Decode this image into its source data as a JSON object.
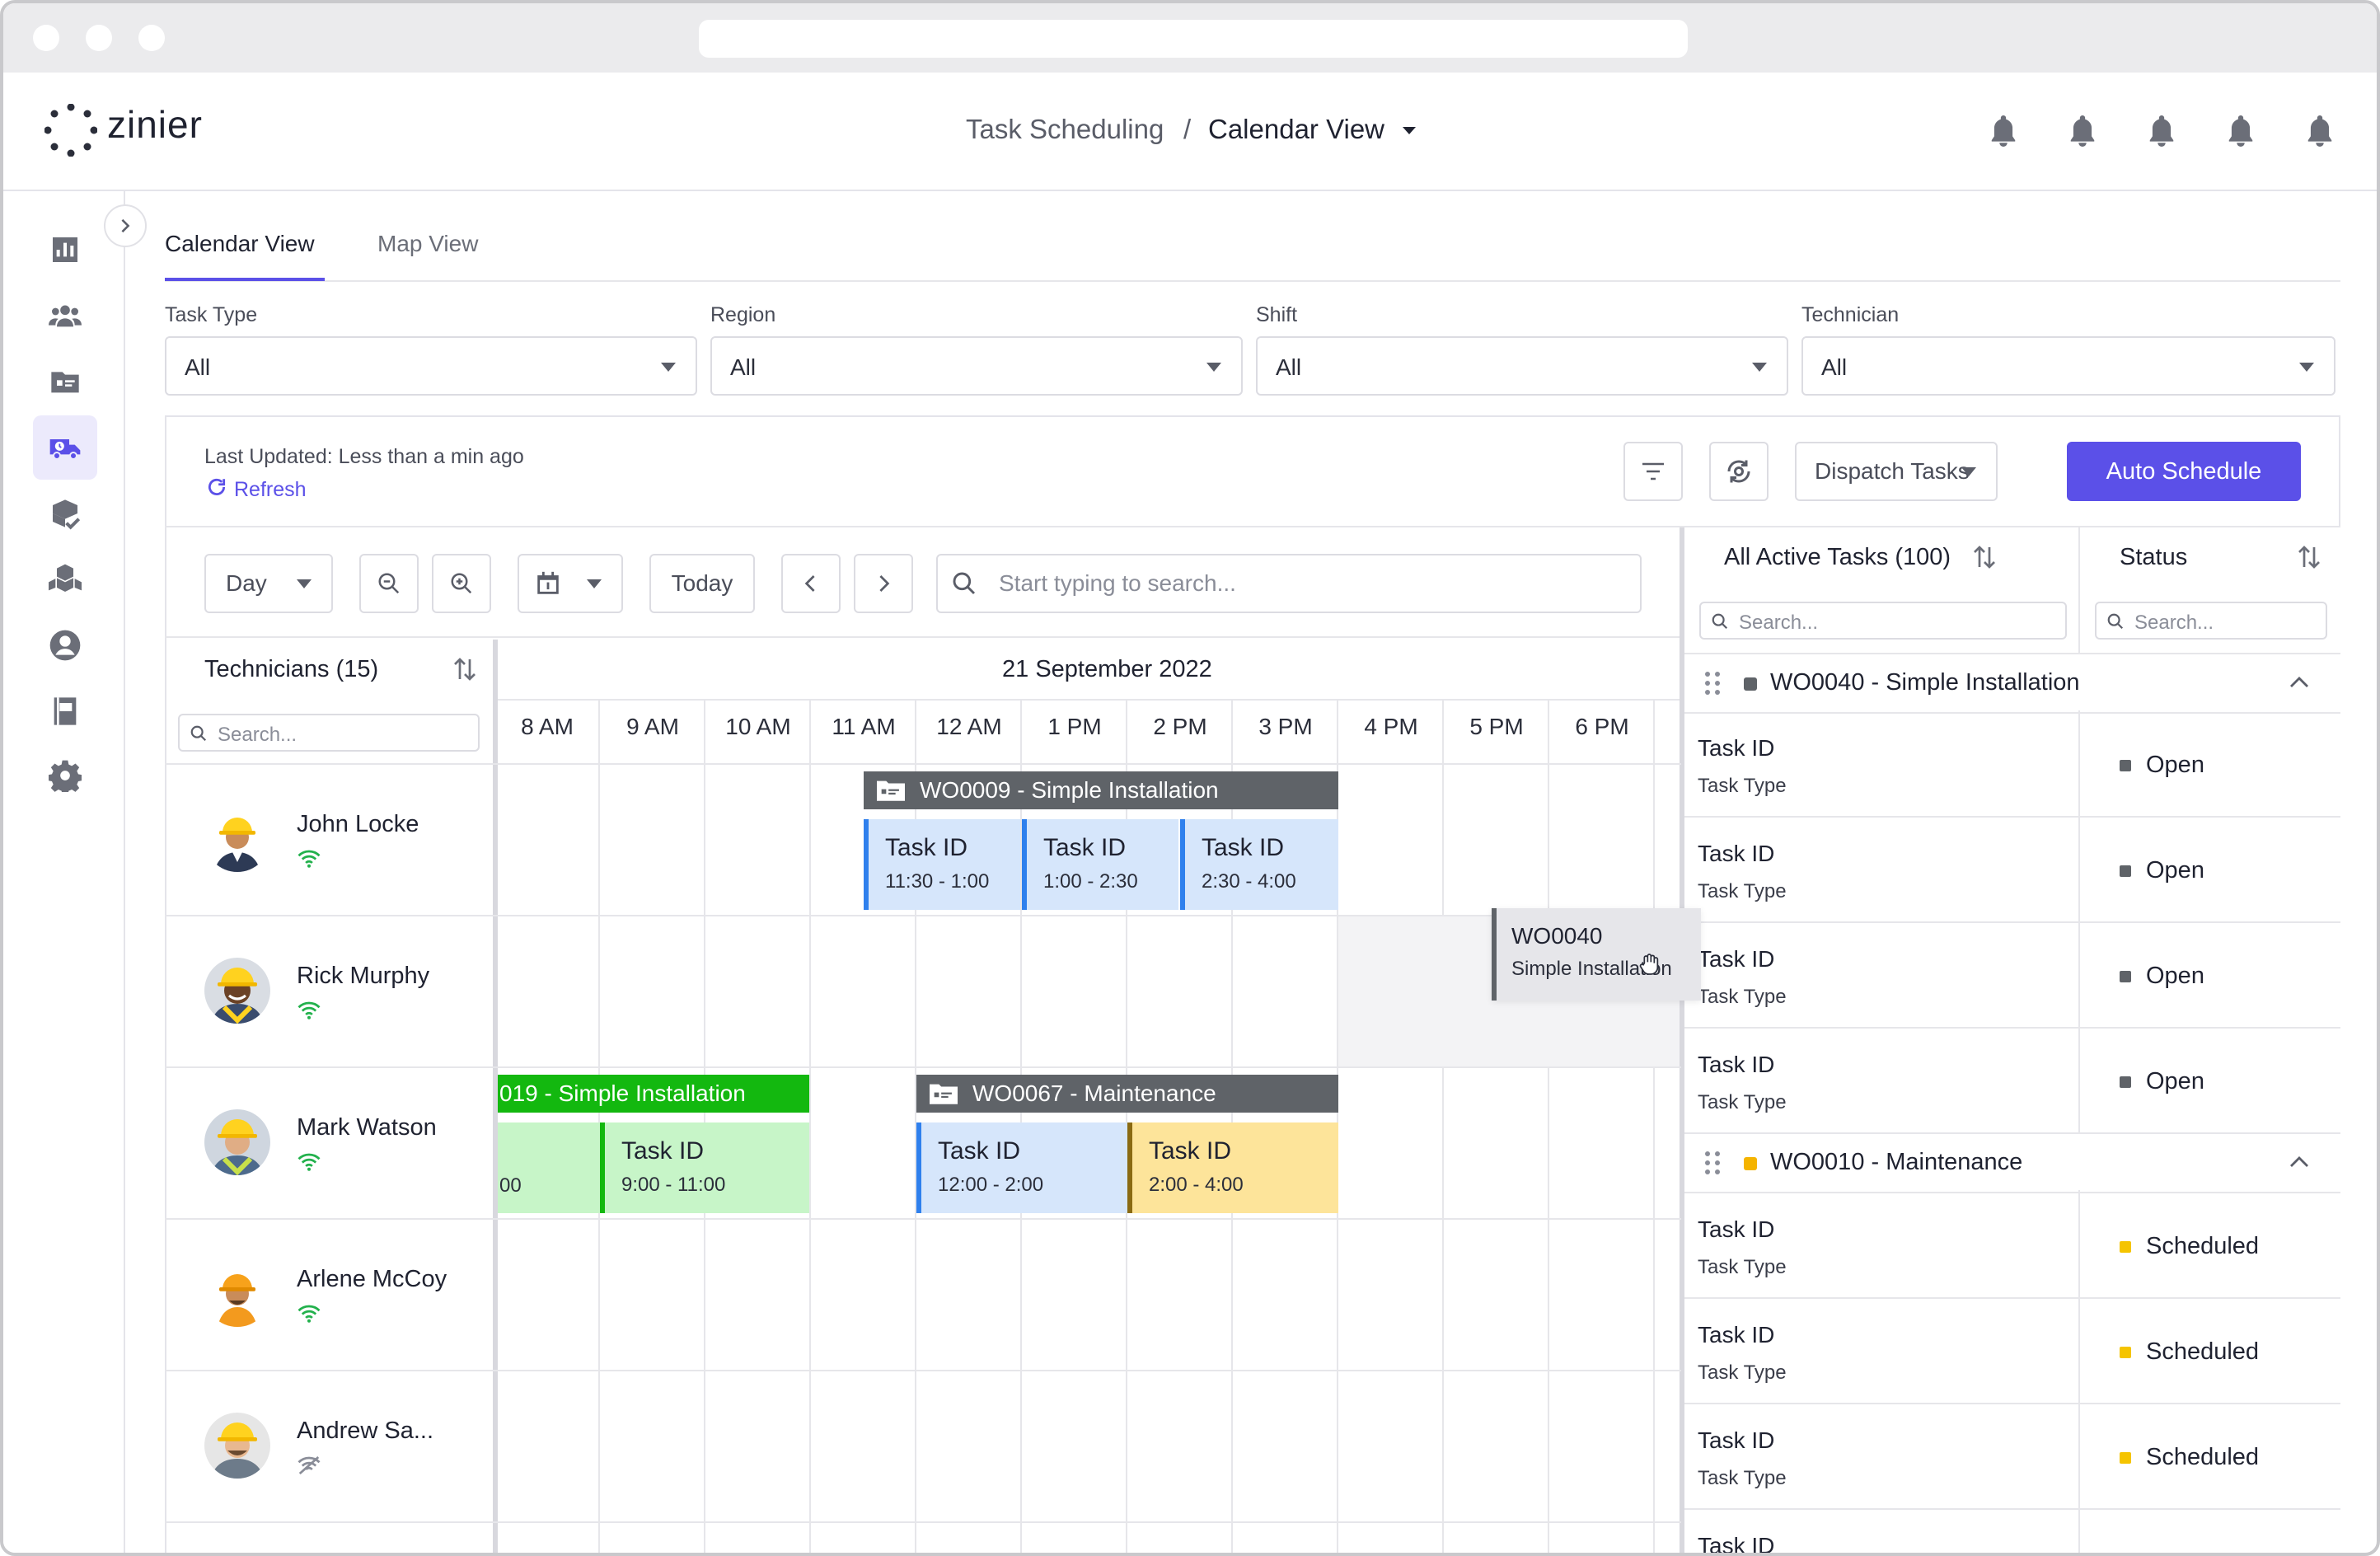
{
  "app": {
    "logo_text": "zinier",
    "breadcrumb_parent": "Task Scheduling",
    "breadcrumb_sep": "/",
    "breadcrumb_current": "Calendar View"
  },
  "tabs": [
    {
      "label": "Calendar View",
      "active": true
    },
    {
      "label": "Map View",
      "active": false
    }
  ],
  "filters": [
    {
      "label": "Task Type",
      "value": "All"
    },
    {
      "label": "Region",
      "value": "All"
    },
    {
      "label": "Shift",
      "value": "All"
    },
    {
      "label": "Technician",
      "value": "All"
    }
  ],
  "toolbar": {
    "last_updated": "Last Updated: Less than a min ago",
    "refresh": "Refresh",
    "dispatch": "Dispatch Tasks",
    "auto_schedule": "Auto Schedule"
  },
  "calendar": {
    "view": "Day",
    "today": "Today",
    "search_placeholder": "Start typing to search...",
    "date": "21 September 2022",
    "technicians_header": "Technicians (15)",
    "tech_search_placeholder": "Search...",
    "times": [
      "8 AM",
      "9 AM",
      "10 AM",
      "11 AM",
      "12 AM",
      "1 PM",
      "2 PM",
      "3 PM",
      "4 PM",
      "5 PM",
      "6 PM"
    ],
    "technicians": [
      {
        "name": "John Locke",
        "online": true
      },
      {
        "name": "Rick Murphy",
        "online": true
      },
      {
        "name": "Mark Watson",
        "online": true
      },
      {
        "name": "Arlene McCoy",
        "online": true
      },
      {
        "name": "Andrew Sa...",
        "online": false
      }
    ],
    "work_orders": [
      {
        "title": "WO0009 - Simple Installation",
        "tasks": [
          {
            "id": "Task ID",
            "time": "11:30 - 1:00"
          },
          {
            "id": "Task ID",
            "time": "1:00 - 2:30"
          },
          {
            "id": "Task ID",
            "time": "2:30 - 4:00"
          }
        ]
      },
      {
        "title": "019 - Simple Installation",
        "tasks": [
          {
            "id": "",
            "time": "00"
          },
          {
            "id": "Task ID",
            "time": "9:00 - 11:00"
          }
        ]
      },
      {
        "title": "WO0067 - Maintenance",
        "tasks": [
          {
            "id": "Task ID",
            "time": "12:00 - 2:00"
          },
          {
            "id": "Task ID",
            "time": "2:00 - 4:00"
          }
        ]
      }
    ],
    "drag_card": {
      "id": "WO0040",
      "type": "Simple Installation"
    }
  },
  "tasks_panel": {
    "header": "All Active Tasks (100)",
    "status_header": "Status",
    "search_placeholder": "Search...",
    "groups": [
      {
        "title": "WO0040 - Simple Installation",
        "color": "#5f6368",
        "rows": [
          {
            "id": "Task ID",
            "type": "Task Type",
            "status": "Open"
          },
          {
            "id": "Task ID",
            "type": "Task Type",
            "status": "Open"
          },
          {
            "id": "Task ID",
            "type": "Task Type",
            "status": "Open"
          },
          {
            "id": "Task ID",
            "type": "Task Type",
            "status": "Open"
          }
        ]
      },
      {
        "title": "WO0010 - Maintenance",
        "color": "#f5b400",
        "rows": [
          {
            "id": "Task ID",
            "type": "Task Type",
            "status": "Scheduled"
          },
          {
            "id": "Task ID",
            "type": "Task Type",
            "status": "Scheduled"
          },
          {
            "id": "Task ID",
            "type": "Task Type",
            "status": "Scheduled"
          },
          {
            "id": "Task ID",
            "type": "",
            "status": ""
          }
        ]
      }
    ]
  },
  "colors": {
    "accent": "#5b50e8",
    "wo_header_gray": "#5f6368",
    "wo_header_green": "#13b80f",
    "task_blue_bg": "#d6e6fb",
    "task_green_bg": "#c7f5c8",
    "task_yellow_bg": "#fde49a"
  }
}
